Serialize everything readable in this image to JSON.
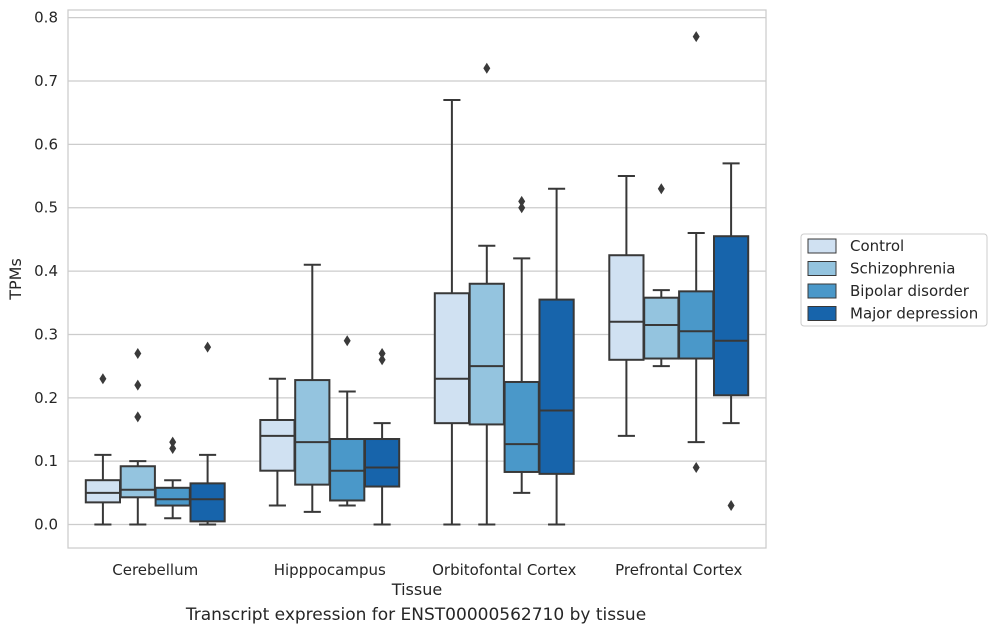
{
  "caption": "Transcript expression for ENST00000562710 by tissue",
  "chart_data": {
    "type": "boxplot",
    "xlabel": "Tissue",
    "ylabel": "TPMs",
    "ylim": [
      -0.037,
      0.812
    ],
    "yticks": [
      0.0,
      0.1,
      0.2,
      0.3,
      0.4,
      0.5,
      0.6,
      0.7,
      0.8
    ],
    "ytick_labels": [
      "0.0",
      "0.1",
      "0.2",
      "0.3",
      "0.4",
      "0.5",
      "0.6",
      "0.7",
      "0.8"
    ],
    "grid": true,
    "legend_position": "right",
    "categories": [
      "Cerebellum",
      "Hipppocampus",
      "Orbitofontal Cortex",
      "Prefrontal Cortex"
    ],
    "series": [
      {
        "name": "Control",
        "color": "#d0e1f2",
        "boxes": [
          {
            "whisker_low": 0.0,
            "q1": 0.035,
            "median": 0.05,
            "q3": 0.07,
            "whisker_high": 0.11,
            "outliers": [
              0.23
            ]
          },
          {
            "whisker_low": 0.03,
            "q1": 0.085,
            "median": 0.14,
            "q3": 0.165,
            "whisker_high": 0.23,
            "outliers": []
          },
          {
            "whisker_low": 0.0,
            "q1": 0.16,
            "median": 0.23,
            "q3": 0.365,
            "whisker_high": 0.67,
            "outliers": []
          },
          {
            "whisker_low": 0.14,
            "q1": 0.26,
            "median": 0.32,
            "q3": 0.425,
            "whisker_high": 0.55,
            "outliers": []
          }
        ]
      },
      {
        "name": "Schizophrenia",
        "color": "#94c4df",
        "boxes": [
          {
            "whisker_low": 0.0,
            "q1": 0.043,
            "median": 0.055,
            "q3": 0.092,
            "whisker_high": 0.1,
            "outliers": [
              0.27,
              0.22,
              0.17
            ]
          },
          {
            "whisker_low": 0.02,
            "q1": 0.063,
            "median": 0.13,
            "q3": 0.228,
            "whisker_high": 0.41,
            "outliers": []
          },
          {
            "whisker_low": 0.0,
            "q1": 0.158,
            "median": 0.25,
            "q3": 0.38,
            "whisker_high": 0.44,
            "outliers": [
              0.72
            ]
          },
          {
            "whisker_low": 0.25,
            "q1": 0.262,
            "median": 0.315,
            "q3": 0.358,
            "whisker_high": 0.37,
            "outliers": [
              0.53
            ]
          }
        ]
      },
      {
        "name": "Bipolar disorder",
        "color": "#4a98c9",
        "boxes": [
          {
            "whisker_low": 0.01,
            "q1": 0.03,
            "median": 0.04,
            "q3": 0.058,
            "whisker_high": 0.07,
            "outliers": [
              0.13,
              0.12
            ]
          },
          {
            "whisker_low": 0.03,
            "q1": 0.038,
            "median": 0.085,
            "q3": 0.135,
            "whisker_high": 0.21,
            "outliers": [
              0.29
            ]
          },
          {
            "whisker_low": 0.05,
            "q1": 0.083,
            "median": 0.127,
            "q3": 0.225,
            "whisker_high": 0.42,
            "outliers": [
              0.51,
              0.5
            ]
          },
          {
            "whisker_low": 0.13,
            "q1": 0.262,
            "median": 0.305,
            "q3": 0.368,
            "whisker_high": 0.46,
            "outliers": [
              0.09,
              0.77
            ]
          }
        ]
      },
      {
        "name": "Major depression",
        "color": "#1764ab",
        "boxes": [
          {
            "whisker_low": 0.0,
            "q1": 0.005,
            "median": 0.04,
            "q3": 0.065,
            "whisker_high": 0.11,
            "outliers": [
              0.28
            ]
          },
          {
            "whisker_low": 0.0,
            "q1": 0.06,
            "median": 0.09,
            "q3": 0.135,
            "whisker_high": 0.16,
            "outliers": [
              0.27,
              0.26
            ]
          },
          {
            "whisker_low": 0.0,
            "q1": 0.08,
            "median": 0.18,
            "q3": 0.355,
            "whisker_high": 0.53,
            "outliers": []
          },
          {
            "whisker_low": 0.16,
            "q1": 0.204,
            "median": 0.29,
            "q3": 0.455,
            "whisker_high": 0.57,
            "outliers": [
              0.03
            ]
          }
        ]
      }
    ]
  }
}
